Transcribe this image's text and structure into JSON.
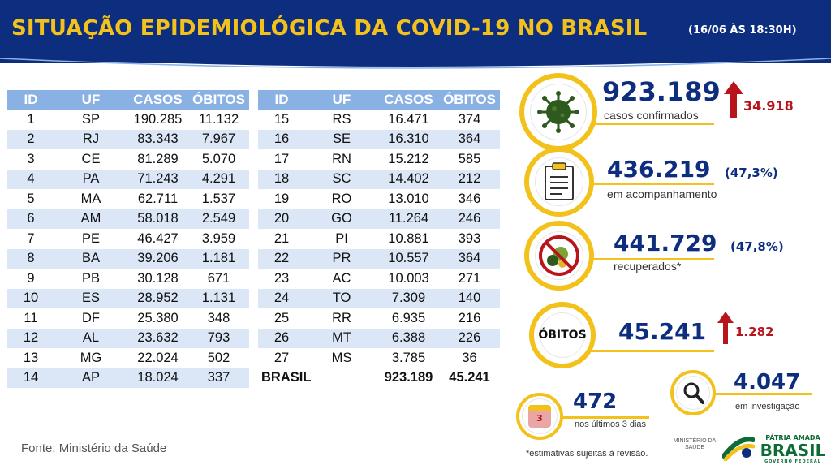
{
  "header": {
    "title": "SITUAÇÃO EPIDEMIOLÓGICA DA COVID-19 NO BRASIL",
    "subtitle": "(16/06 ÀS 18:30H)"
  },
  "table": {
    "columns": [
      "ID",
      "UF",
      "CASOS",
      "ÓBITOS"
    ],
    "left_rows": [
      [
        "1",
        "SP",
        "190.285",
        "11.132"
      ],
      [
        "2",
        "RJ",
        "83.343",
        "7.967"
      ],
      [
        "3",
        "CE",
        "81.289",
        "5.070"
      ],
      [
        "4",
        "PA",
        "71.243",
        "4.291"
      ],
      [
        "5",
        "MA",
        "62.711",
        "1.537"
      ],
      [
        "6",
        "AM",
        "58.018",
        "2.549"
      ],
      [
        "7",
        "PE",
        "46.427",
        "3.959"
      ],
      [
        "8",
        "BA",
        "39.206",
        "1.181"
      ],
      [
        "9",
        "PB",
        "30.128",
        "671"
      ],
      [
        "10",
        "ES",
        "28.952",
        "1.131"
      ],
      [
        "11",
        "DF",
        "25.380",
        "348"
      ],
      [
        "12",
        "AL",
        "23.632",
        "793"
      ],
      [
        "13",
        "MG",
        "22.024",
        "502"
      ],
      [
        "14",
        "AP",
        "18.024",
        "337"
      ]
    ],
    "right_rows": [
      [
        "15",
        "RS",
        "16.471",
        "374"
      ],
      [
        "16",
        "SE",
        "16.310",
        "364"
      ],
      [
        "17",
        "RN",
        "15.212",
        "585"
      ],
      [
        "18",
        "SC",
        "14.402",
        "212"
      ],
      [
        "19",
        "RO",
        "13.010",
        "346"
      ],
      [
        "20",
        "GO",
        "11.264",
        "246"
      ],
      [
        "21",
        "PI",
        "10.881",
        "393"
      ],
      [
        "22",
        "PR",
        "10.557",
        "364"
      ],
      [
        "23",
        "AC",
        "10.003",
        "271"
      ],
      [
        "24",
        "TO",
        "7.309",
        "140"
      ],
      [
        "25",
        "RR",
        "6.935",
        "216"
      ],
      [
        "26",
        "MT",
        "6.388",
        "226"
      ],
      [
        "27",
        "MS",
        "3.785",
        "36"
      ]
    ],
    "total": {
      "label": "BRASIL",
      "casos": "923.189",
      "obitos": "45.241"
    }
  },
  "stats": {
    "confirmed": {
      "value": "923.189",
      "label": "casos confirmados",
      "delta": "34.918",
      "icon": "virus-icon"
    },
    "monitoring": {
      "value": "436.219",
      "pct": "(47,3%)",
      "label": "em acompanhamento",
      "icon": "clipboard-icon"
    },
    "recovered": {
      "value": "441.729",
      "pct": "(47,8%)",
      "label": "recuperados*",
      "icon": "no-virus-icon"
    },
    "deaths": {
      "value": "45.241",
      "word": "ÓBITOS",
      "delta": "1.282"
    },
    "investigation": {
      "value": "4.047",
      "label": "em investigação",
      "icon": "magnifier-icon"
    },
    "last3days": {
      "value": "472",
      "label": "nos últimos 3 dias",
      "calendar_number": "3",
      "icon": "calendar-icon"
    }
  },
  "footer": {
    "source": "Fonte: Ministério da Saúde",
    "note": "*estimativas sujeitas à revisão.",
    "ministry": "MINISTÉRIO DA SAÚDE",
    "brand_line1": "PÁTRIA AMADA",
    "brand_line2": "BRASIL",
    "brand_line3": "GOVERNO FEDERAL"
  },
  "colors": {
    "navy": "#0d2d7e",
    "gold": "#f3c11b",
    "table_header": "#8ab1e4",
    "row_stripe": "#dbe6f6",
    "increase_red": "#b8141b"
  }
}
